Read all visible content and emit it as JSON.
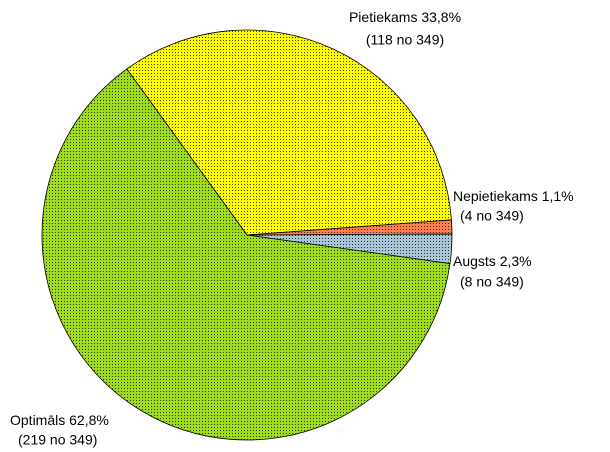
{
  "chart_data": {
    "type": "pie",
    "categories": [
      "Pietiekams",
      "Nepietiekams",
      "Augsts",
      "Optimāls"
    ],
    "values": [
      33.8,
      1.1,
      2.3,
      62.8
    ],
    "value_labels": [
      "33,8%",
      "1,1%",
      "2,3%",
      "62,8%"
    ],
    "count_labels": [
      "(118 no 349)",
      "(4 no 349)",
      "(8 no 349)",
      "(219 no 349)"
    ],
    "colors": [
      "#ffff00",
      "#ff7f50",
      "#a9c7d6",
      "#9fdc1e"
    ]
  }
}
